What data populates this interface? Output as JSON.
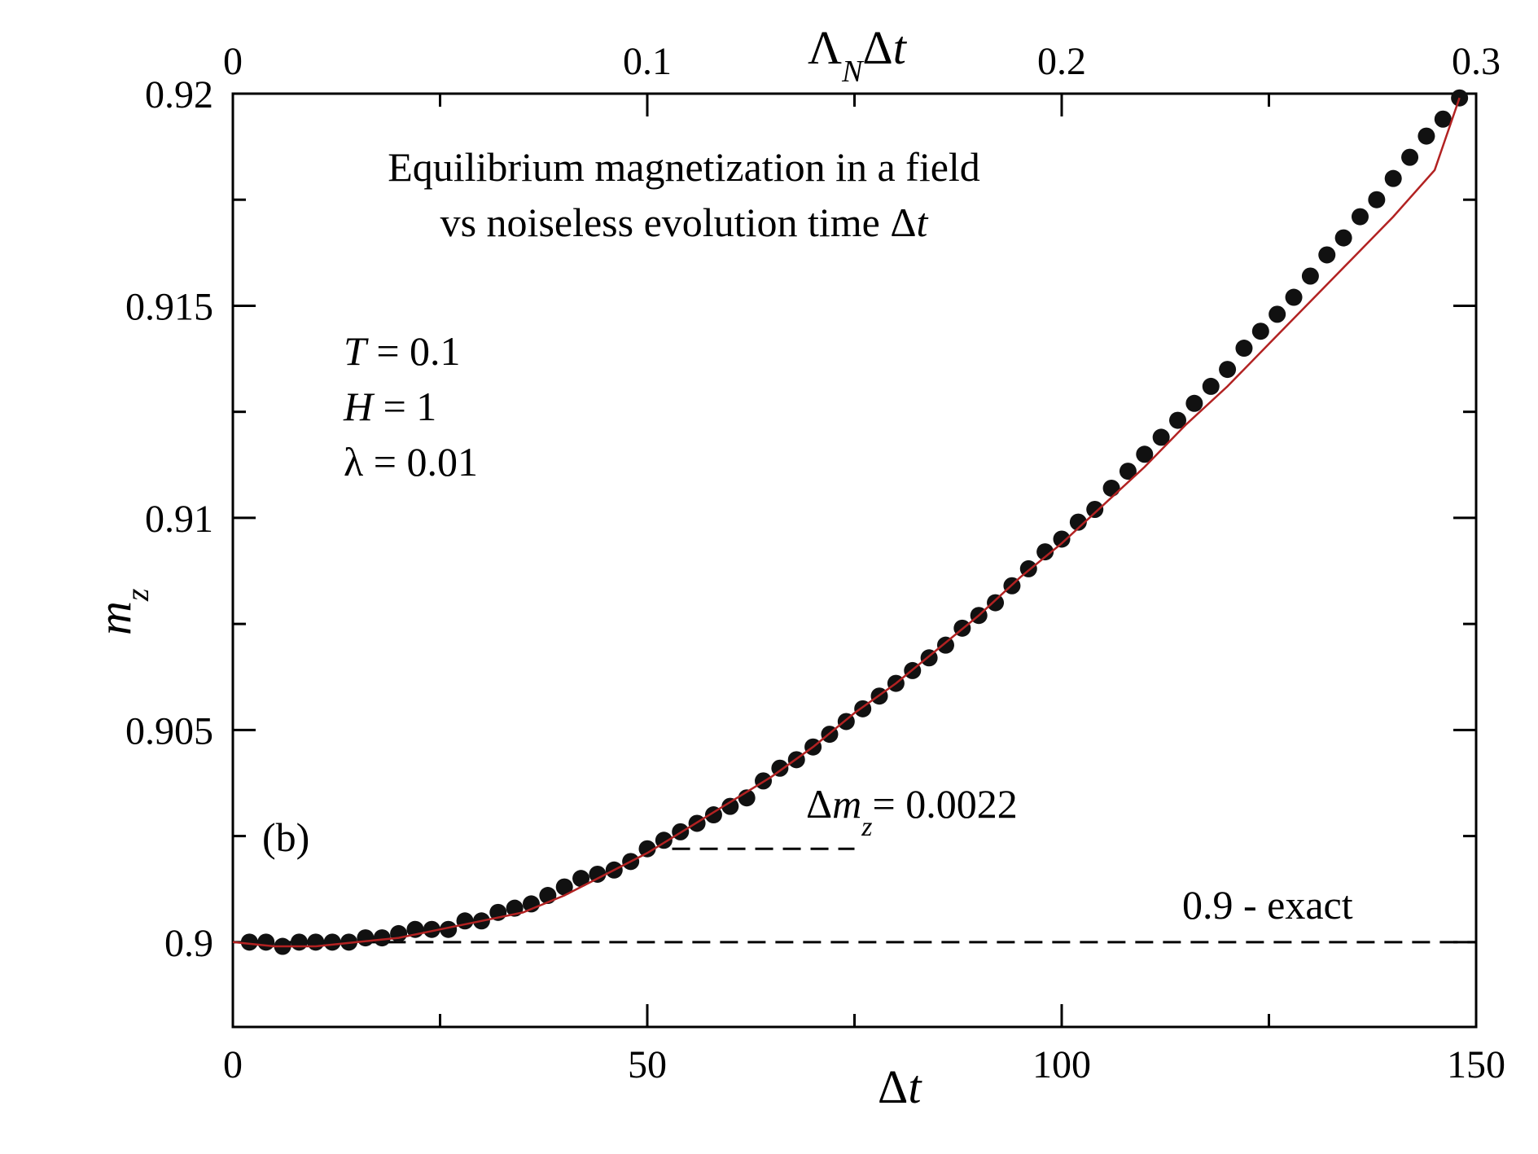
{
  "chart_data": {
    "type": "scatter",
    "panel_label": "(b)",
    "title_line1": "Equilibrium magnetization in a field",
    "title_line2_prefix": "vs noiseless evolution time Δ",
    "title_line2_italic": "t",
    "params": [
      {
        "symbol": "T",
        "italic": true,
        "rest": " = 0.1"
      },
      {
        "symbol": "H",
        "italic": true,
        "rest": " = 1"
      },
      {
        "symbol": "λ",
        "italic": false,
        "rest": " = 0.01"
      }
    ],
    "xlabel": {
      "prefix": "Δ",
      "italic": "t"
    },
    "ylabel": {
      "main": "m",
      "sub": "z"
    },
    "top_xlabel": {
      "main": "Λ",
      "sub": "N",
      "prefix": "Δ",
      "italic": "t"
    },
    "xlim": [
      0,
      150
    ],
    "ylim": [
      0.898,
      0.92
    ],
    "xticks": [
      0,
      50,
      100,
      150
    ],
    "xtick_labels": [
      "0",
      "50",
      "100",
      "150"
    ],
    "xminor": [
      25,
      75,
      125
    ],
    "yticks": [
      0.9,
      0.905,
      0.91,
      0.915,
      0.92
    ],
    "ytick_labels": [
      "0.9",
      "0.905",
      "0.91",
      "0.915",
      "0.92"
    ],
    "yminor": [
      0.9025,
      0.9075,
      0.9125,
      0.9175
    ],
    "top_xticks": [
      0,
      0.1,
      0.2,
      0.3
    ],
    "top_xtick_labels": [
      "0",
      "0.1",
      "0.2",
      "0.3"
    ],
    "top_scale": 0.002,
    "exact_line": {
      "y": 0.9,
      "label": "0.9 - exact"
    },
    "delta_line": {
      "y": 0.9022,
      "x_from": 53,
      "x_to": 75,
      "label_prefix": "Δ",
      "label_main": "m",
      "label_sub": "z",
      "label_value": "= 0.0022"
    },
    "colors": {
      "points": "#111111",
      "fit": "#b22222",
      "axes": "#000000"
    },
    "x": [
      2,
      4,
      6,
      8,
      10,
      12,
      14,
      16,
      18,
      20,
      22,
      24,
      26,
      28,
      30,
      32,
      34,
      36,
      38,
      40,
      42,
      44,
      46,
      48,
      50,
      52,
      54,
      56,
      58,
      60,
      62,
      64,
      66,
      68,
      70,
      72,
      74,
      76,
      78,
      80,
      82,
      84,
      86,
      88,
      90,
      92,
      94,
      96,
      98,
      100,
      102,
      104,
      106,
      108,
      110,
      112,
      114,
      116,
      118,
      120,
      122,
      124,
      126,
      128,
      130,
      132,
      134,
      136,
      138,
      140,
      142,
      144,
      146,
      148
    ],
    "y": [
      0.9,
      0.9,
      0.8999,
      0.9,
      0.9,
      0.9,
      0.9,
      0.9001,
      0.9001,
      0.9002,
      0.9003,
      0.9003,
      0.9003,
      0.9005,
      0.9005,
      0.9007,
      0.9008,
      0.9009,
      0.9011,
      0.9013,
      0.9015,
      0.9016,
      0.9017,
      0.9019,
      0.9022,
      0.9024,
      0.9026,
      0.9028,
      0.903,
      0.9032,
      0.9034,
      0.9038,
      0.9041,
      0.9043,
      0.9046,
      0.9049,
      0.9052,
      0.9055,
      0.9058,
      0.9061,
      0.9064,
      0.9067,
      0.907,
      0.9074,
      0.9077,
      0.908,
      0.9084,
      0.9088,
      0.9092,
      0.9095,
      0.9099,
      0.9102,
      0.9107,
      0.9111,
      0.9115,
      0.9119,
      0.9123,
      0.9127,
      0.9131,
      0.9135,
      0.914,
      0.9144,
      0.9148,
      0.9152,
      0.9157,
      0.9162,
      0.9166,
      0.9171,
      0.9175,
      0.918,
      0.9185,
      0.919,
      0.9194,
      0.9199
    ],
    "fit_x": [
      0,
      5,
      10,
      15,
      20,
      25,
      30,
      35,
      40,
      45,
      50,
      55,
      60,
      65,
      70,
      75,
      80,
      85,
      90,
      95,
      100,
      105,
      110,
      115,
      120,
      125,
      130,
      135,
      140,
      145,
      148
    ],
    "fit_y": [
      0.9,
      0.8999,
      0.8999,
      0.9,
      0.9001,
      0.9003,
      0.9005,
      0.9007,
      0.9011,
      0.9016,
      0.9021,
      0.9027,
      0.9033,
      0.9039,
      0.9046,
      0.9054,
      0.9061,
      0.9069,
      0.9077,
      0.9086,
      0.9094,
      0.9103,
      0.9112,
      0.9122,
      0.9131,
      0.9141,
      0.9151,
      0.9161,
      0.9171,
      0.9182,
      0.9199
    ]
  }
}
